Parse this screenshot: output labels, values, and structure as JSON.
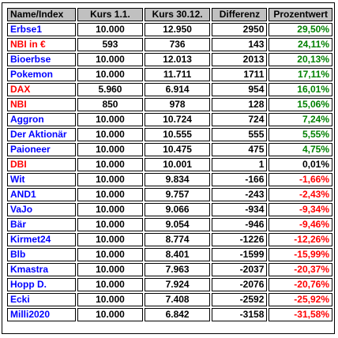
{
  "colors": {
    "header_bg": "#c0c0c0",
    "name_blue": "#0000ff",
    "name_red": "#ff0000",
    "positive": "#008000",
    "negative": "#ff0000"
  },
  "table": {
    "headers": [
      "Name/Index",
      "Kurs 1.1.",
      "Kurs 30.12.",
      "Differenz",
      "Prozentwert"
    ],
    "rows": [
      {
        "name": "Erbse1",
        "kurs_start": "10.000",
        "kurs_end": "12.950",
        "diff": "2950",
        "pct": "29,50%",
        "name_color": "blue",
        "sign": "pos"
      },
      {
        "name": "NBI in €",
        "kurs_start": "593",
        "kurs_end": "736",
        "diff": "143",
        "pct": "24,11%",
        "name_color": "red",
        "sign": "pos"
      },
      {
        "name": "Bioerbse",
        "kurs_start": "10.000",
        "kurs_end": "12.013",
        "diff": "2013",
        "pct": "20,13%",
        "name_color": "blue",
        "sign": "pos"
      },
      {
        "name": "Pokemon",
        "kurs_start": "10.000",
        "kurs_end": "11.711",
        "diff": "1711",
        "pct": "17,11%",
        "name_color": "blue",
        "sign": "pos"
      },
      {
        "name": "DAX",
        "kurs_start": "5.960",
        "kurs_end": "6.914",
        "diff": "954",
        "pct": "16,01%",
        "name_color": "red",
        "sign": "pos"
      },
      {
        "name": "NBI",
        "kurs_start": "850",
        "kurs_end": "978",
        "diff": "128",
        "pct": "15,06%",
        "name_color": "red",
        "sign": "pos"
      },
      {
        "name": "Aggron",
        "kurs_start": "10.000",
        "kurs_end": "10.724",
        "diff": "724",
        "pct": "7,24%",
        "name_color": "blue",
        "sign": "pos"
      },
      {
        "name": "Der Aktionär",
        "kurs_start": "10.000",
        "kurs_end": "10.555",
        "diff": "555",
        "pct": "5,55%",
        "name_color": "blue",
        "sign": "pos"
      },
      {
        "name": "Paioneer",
        "kurs_start": "10.000",
        "kurs_end": "10.475",
        "diff": "475",
        "pct": "4,75%",
        "name_color": "blue",
        "sign": "pos"
      },
      {
        "name": "DBI",
        "kurs_start": "10.000",
        "kurs_end": "10.001",
        "diff": "1",
        "pct": "0,01%",
        "name_color": "red",
        "sign": "zero"
      },
      {
        "name": "Wit",
        "kurs_start": "10.000",
        "kurs_end": "9.834",
        "diff": "-166",
        "pct": "-1,66%",
        "name_color": "blue",
        "sign": "neg"
      },
      {
        "name": "AND1",
        "kurs_start": "10.000",
        "kurs_end": "9.757",
        "diff": "-243",
        "pct": "-2,43%",
        "name_color": "blue",
        "sign": "neg"
      },
      {
        "name": "VaJo",
        "kurs_start": "10.000",
        "kurs_end": "9.066",
        "diff": "-934",
        "pct": "-9,34%",
        "name_color": "blue",
        "sign": "neg"
      },
      {
        "name": "Bär",
        "kurs_start": "10.000",
        "kurs_end": "9.054",
        "diff": "-946",
        "pct": "-9,46%",
        "name_color": "blue",
        "sign": "neg"
      },
      {
        "name": "Kirmet24",
        "kurs_start": "10.000",
        "kurs_end": "8.774",
        "diff": "-1226",
        "pct": "-12,26%",
        "name_color": "blue",
        "sign": "neg"
      },
      {
        "name": "Blb",
        "kurs_start": "10.000",
        "kurs_end": "8.401",
        "diff": "-1599",
        "pct": "-15,99%",
        "name_color": "blue",
        "sign": "neg"
      },
      {
        "name": "Kmastra",
        "kurs_start": "10.000",
        "kurs_end": "7.963",
        "diff": "-2037",
        "pct": "-20,37%",
        "name_color": "blue",
        "sign": "neg"
      },
      {
        "name": "Hopp D.",
        "kurs_start": "10.000",
        "kurs_end": "7.924",
        "diff": "-2076",
        "pct": "-20,76%",
        "name_color": "blue",
        "sign": "neg"
      },
      {
        "name": "Ecki",
        "kurs_start": "10.000",
        "kurs_end": "7.408",
        "diff": "-2592",
        "pct": "-25,92%",
        "name_color": "blue",
        "sign": "neg"
      },
      {
        "name": "Milli2020",
        "kurs_start": "10.000",
        "kurs_end": "6.842",
        "diff": "-3158",
        "pct": "-31,58%",
        "name_color": "blue",
        "sign": "neg"
      }
    ]
  }
}
